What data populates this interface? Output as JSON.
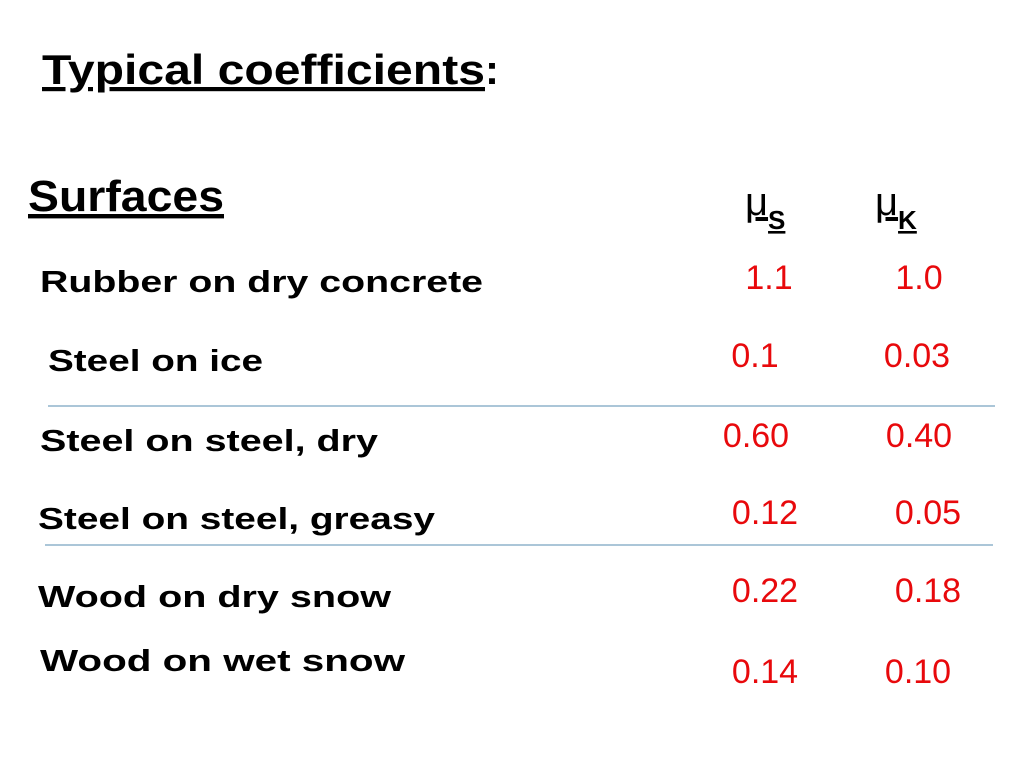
{
  "header": {
    "title": "Typical coefficients",
    "title_suffix": ":"
  },
  "table": {
    "columns": [
      {
        "label": "Surfaces"
      },
      {
        "symbol": "μ",
        "subscript": "S"
      },
      {
        "symbol": "μ",
        "subscript": "K"
      }
    ],
    "rows": [
      [
        "Rubber on dry concrete",
        "1.1",
        "1.0"
      ],
      [
        "Steel on ice",
        "0.1",
        "0.03"
      ],
      [
        "Steel on steel, dry",
        "0.60",
        "0.40"
      ],
      [
        "Steel on steel, greasy",
        "0.12",
        "0.05"
      ],
      [
        "Wood on dry snow",
        "0.22",
        "0.18"
      ],
      [
        "Wood on wet snow",
        "0.14",
        "0.10"
      ]
    ]
  }
}
